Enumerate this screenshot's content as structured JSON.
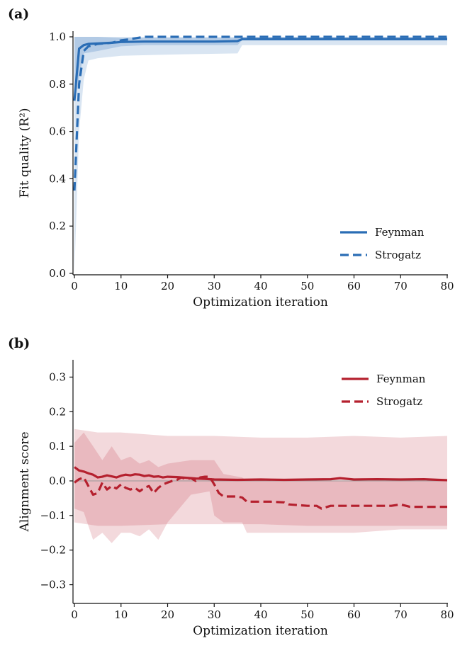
{
  "chart_data": [
    {
      "panel": "(a)",
      "type": "line",
      "xlabel": "Optimization iteration",
      "ylabel": "Fit quality (R²)",
      "xlim": [
        0,
        80
      ],
      "ylim": [
        0,
        1.0
      ],
      "xticks": [
        "0",
        "10",
        "20",
        "30",
        "40",
        "50",
        "60",
        "70",
        "80"
      ],
      "yticks": [
        "0.0",
        "0.2",
        "0.4",
        "0.6",
        "0.8",
        "1.0"
      ],
      "grid": false,
      "legend_position": "bottom-right",
      "color": "#2a6db5",
      "series": [
        {
          "name": "Feynman",
          "style": "solid",
          "x": [
            0,
            1,
            2,
            3,
            5,
            8,
            10,
            15,
            20,
            30,
            35,
            36,
            40,
            50,
            60,
            70,
            80
          ],
          "y": [
            0.73,
            0.95,
            0.965,
            0.97,
            0.972,
            0.975,
            0.978,
            0.98,
            0.98,
            0.98,
            0.982,
            0.99,
            0.99,
            0.99,
            0.99,
            0.99,
            0.99
          ],
          "band_inner": [
            [
              0,
              0.72,
              1.0
            ],
            [
              2,
              0.93,
              1.0
            ],
            [
              5,
              0.94,
              1.0
            ],
            [
              10,
              0.96,
              0.995
            ],
            [
              15,
              0.965,
              0.995
            ],
            [
              35,
              0.965,
              0.995
            ],
            [
              36,
              0.985,
              1.0
            ],
            [
              80,
              0.985,
              1.0
            ]
          ],
          "band_outer": [
            [
              0,
              0.0,
              1.0
            ],
            [
              1,
              0.6,
              1.0
            ],
            [
              2,
              0.82,
              1.0
            ],
            [
              3,
              0.9,
              1.0
            ],
            [
              5,
              0.91,
              1.0
            ],
            [
              10,
              0.92,
              1.0
            ],
            [
              20,
              0.925,
              1.0
            ],
            [
              35,
              0.93,
              1.0
            ],
            [
              36,
              0.965,
              1.0
            ],
            [
              80,
              0.965,
              1.0
            ]
          ]
        },
        {
          "name": "Strogatz",
          "style": "dashed",
          "x": [
            0,
            1,
            2,
            3,
            5,
            8,
            10,
            12,
            15,
            20,
            30,
            40,
            50,
            60,
            70,
            80
          ],
          "y": [
            0.35,
            0.8,
            0.94,
            0.96,
            0.97,
            0.975,
            0.985,
            0.99,
            1.0,
            1.0,
            1.0,
            1.0,
            1.0,
            1.0,
            1.0,
            1.0
          ]
        }
      ]
    },
    {
      "panel": "(b)",
      "type": "line",
      "xlabel": "Optimization iteration",
      "ylabel": "Alignment score",
      "xlim": [
        0,
        80
      ],
      "ylim": [
        -0.35,
        0.35
      ],
      "xticks": [
        "0",
        "10",
        "20",
        "30",
        "40",
        "50",
        "60",
        "70",
        "80"
      ],
      "yticks": [
        "−0.3",
        "−0.2",
        "−0.1",
        "0.0",
        "0.1",
        "0.2",
        "0.3"
      ],
      "grid": false,
      "zero_line": true,
      "legend_position": "top-right",
      "color": "#b5202e",
      "series": [
        {
          "name": "Feynman",
          "style": "solid",
          "x": [
            0,
            1,
            2,
            3,
            4,
            5,
            6,
            7,
            8,
            9,
            10,
            11,
            12,
            13,
            14,
            15,
            16,
            17,
            18,
            19,
            20,
            22,
            24,
            26,
            28,
            30,
            35,
            40,
            45,
            50,
            55,
            57,
            60,
            65,
            70,
            75,
            80
          ],
          "y": [
            0.04,
            0.03,
            0.027,
            0.022,
            0.018,
            0.01,
            0.012,
            0.016,
            0.013,
            0.01,
            0.015,
            0.018,
            0.016,
            0.019,
            0.018,
            0.014,
            0.016,
            0.012,
            0.013,
            0.01,
            0.012,
            0.011,
            0.009,
            0.007,
            0.006,
            0.004,
            0.003,
            0.004,
            0.003,
            0.004,
            0.005,
            0.008,
            0.004,
            0.005,
            0.004,
            0.005,
            0.002
          ],
          "band": [
            [
              0,
              -0.12,
              0.15
            ],
            [
              5,
              -0.13,
              0.14
            ],
            [
              10,
              -0.13,
              0.14
            ],
            [
              20,
              -0.125,
              0.13
            ],
            [
              30,
              -0.125,
              0.13
            ],
            [
              40,
              -0.125,
              0.125
            ],
            [
              50,
              -0.13,
              0.125
            ],
            [
              60,
              -0.13,
              0.13
            ],
            [
              70,
              -0.13,
              0.125
            ],
            [
              80,
              -0.13,
              0.13
            ]
          ]
        },
        {
          "name": "Strogatz",
          "style": "dashed",
          "x": [
            0,
            1,
            2,
            3,
            4,
            5,
            6,
            7,
            8,
            9,
            10,
            11,
            12,
            13,
            14,
            15,
            16,
            17,
            18,
            19,
            20,
            21,
            22,
            23,
            24,
            25,
            26,
            27,
            28,
            29,
            30,
            31,
            32,
            33,
            34,
            35,
            36,
            37,
            38,
            40,
            42,
            45,
            46,
            48,
            50,
            52,
            53,
            55,
            60,
            65,
            68,
            70,
            72,
            75,
            80
          ],
          "y": [
            -0.005,
            0.005,
            0.01,
            -0.015,
            -0.04,
            -0.035,
            -0.005,
            -0.025,
            -0.015,
            -0.022,
            -0.01,
            -0.02,
            -0.025,
            -0.02,
            -0.03,
            -0.02,
            -0.015,
            -0.035,
            -0.02,
            -0.01,
            -0.005,
            0.0,
            0.003,
            0.01,
            0.005,
            0.008,
            0.0,
            0.01,
            0.012,
            0.012,
            -0.01,
            -0.035,
            -0.045,
            -0.045,
            -0.045,
            -0.045,
            -0.048,
            -0.06,
            -0.06,
            -0.06,
            -0.06,
            -0.062,
            -0.068,
            -0.07,
            -0.072,
            -0.072,
            -0.08,
            -0.072,
            -0.072,
            -0.072,
            -0.072,
            -0.068,
            -0.075,
            -0.075,
            -0.075
          ],
          "band": [
            [
              0,
              -0.08,
              0.11
            ],
            [
              2,
              -0.09,
              0.14
            ],
            [
              4,
              -0.17,
              0.1
            ],
            [
              6,
              -0.15,
              0.06
            ],
            [
              8,
              -0.18,
              0.1
            ],
            [
              10,
              -0.15,
              0.06
            ],
            [
              12,
              -0.15,
              0.07
            ],
            [
              14,
              -0.16,
              0.05
            ],
            [
              16,
              -0.14,
              0.06
            ],
            [
              18,
              -0.17,
              0.04
            ],
            [
              20,
              -0.12,
              0.05
            ],
            [
              25,
              -0.04,
              0.06
            ],
            [
              29,
              -0.03,
              0.06
            ],
            [
              30,
              -0.1,
              0.06
            ],
            [
              32,
              -0.12,
              0.02
            ],
            [
              36,
              -0.12,
              0.01
            ],
            [
              37,
              -0.15,
              0.0
            ],
            [
              50,
              -0.15,
              0.0
            ],
            [
              60,
              -0.15,
              0.0
            ],
            [
              70,
              -0.14,
              0.0
            ],
            [
              80,
              -0.14,
              0.0
            ]
          ]
        }
      ]
    }
  ]
}
